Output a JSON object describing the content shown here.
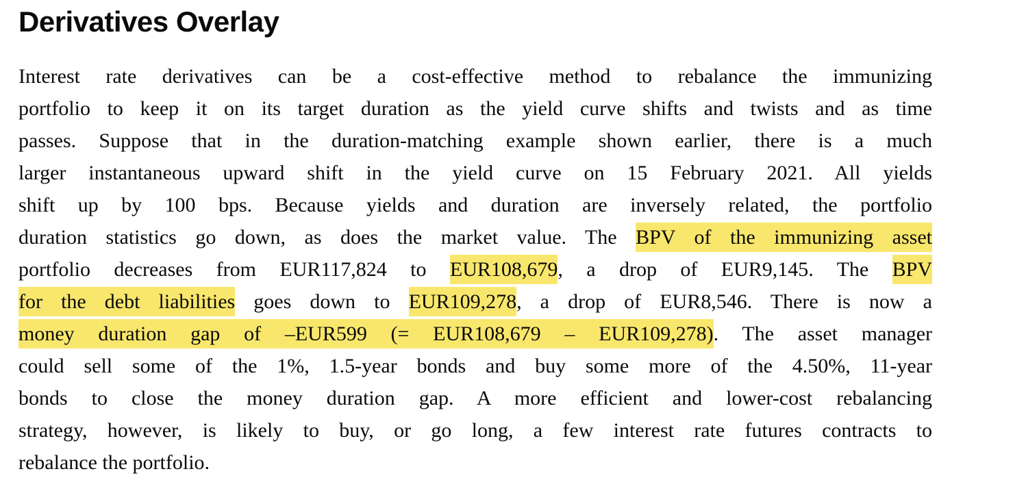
{
  "page": {
    "title": "Derivatives Overlay",
    "colors": {
      "highlight": "#f8e76c",
      "text": "#0a0a0a",
      "background": "#ffffff"
    },
    "paragraph": {
      "lines": [
        {
          "last": false,
          "segments": [
            {
              "text": "Interest rate derivatives can be a cost-effective method to rebalance the immunizing",
              "highlight": false
            }
          ]
        },
        {
          "last": false,
          "segments": [
            {
              "text": "portfolio to keep it on its target duration as the yield curve shifts and twists and as time",
              "highlight": false
            }
          ]
        },
        {
          "last": false,
          "segments": [
            {
              "text": "passes. Suppose that in the duration-matching example shown earlier, there is a much",
              "highlight": false
            }
          ]
        },
        {
          "last": false,
          "segments": [
            {
              "text": "larger instantaneous upward shift in the yield curve on 15 February 2021. All yields",
              "highlight": false
            }
          ]
        },
        {
          "last": false,
          "segments": [
            {
              "text": "shift up by 100 bps. Because yields and duration are inversely related, the portfolio",
              "highlight": false
            }
          ]
        },
        {
          "last": false,
          "segments": [
            {
              "text": "duration statistics go down, as does the market value. The ",
              "highlight": false
            },
            {
              "text": "BPV of the immunizing asset",
              "highlight": true
            }
          ]
        },
        {
          "last": false,
          "segments": [
            {
              "text": "portfolio decreases from EUR117,824 to ",
              "highlight": false
            },
            {
              "text": "EUR108,679",
              "highlight": true
            },
            {
              "text": ", a drop of EUR9,145. The ",
              "highlight": false
            },
            {
              "text": "BPV",
              "highlight": true
            }
          ]
        },
        {
          "last": false,
          "segments": [
            {
              "text": "for the debt liabilities",
              "highlight": true
            },
            {
              "text": " goes down to ",
              "highlight": false
            },
            {
              "text": "EUR109,278",
              "highlight": true
            },
            {
              "text": ", a drop of EUR8,546. There is now a",
              "highlight": false
            }
          ]
        },
        {
          "last": false,
          "segments": [
            {
              "text": "money duration gap of –EUR599 (= EUR108,679 – EUR109,278)",
              "highlight": true
            },
            {
              "text": ". The asset manager",
              "highlight": false
            }
          ]
        },
        {
          "last": false,
          "segments": [
            {
              "text": "could sell some of the 1%, 1.5-year bonds and buy some more of the 4.50%, 11-year",
              "highlight": false
            }
          ]
        },
        {
          "last": false,
          "segments": [
            {
              "text": "bonds to close the money duration gap. A more efficient and lower-cost rebalancing",
              "highlight": false
            }
          ]
        },
        {
          "last": false,
          "segments": [
            {
              "text": "strategy, however, is likely to buy, or go long, a few interest rate futures contracts to",
              "highlight": false
            }
          ]
        },
        {
          "last": true,
          "segments": [
            {
              "text": "rebalance the portfolio.",
              "highlight": false
            }
          ]
        }
      ]
    }
  }
}
